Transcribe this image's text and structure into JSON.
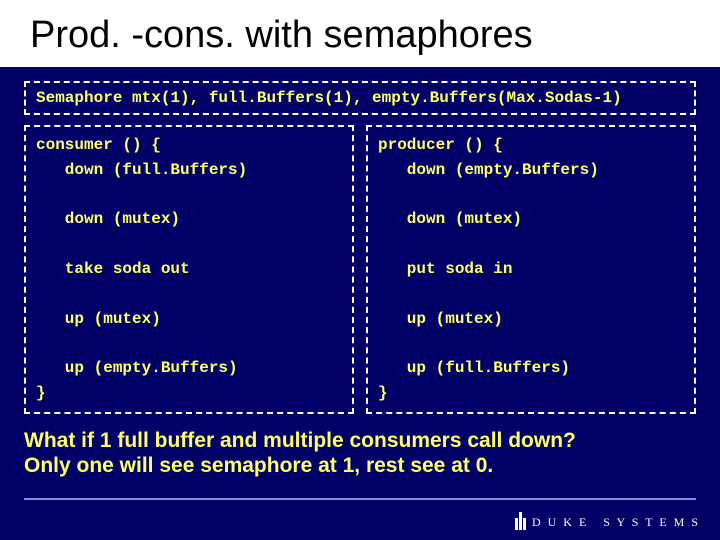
{
  "title": "Prod. -cons. with semaphores",
  "declaration": "Semaphore mtx(1), full.Buffers(1), empty.Buffers(Max.Sodas-1)",
  "consumer_code": "consumer () {\n   down (full.Buffers)\n\n   down (mutex)\n\n   take soda out\n\n   up (mutex)\n\n   up (empty.Buffers)\n}",
  "producer_code": "producer () {\n   down (empty.Buffers)\n\n   down (mutex)\n\n   put soda in\n\n   up (mutex)\n\n   up (full.Buffers)\n}",
  "question_line1": "What if 1 full buffer and multiple consumers call down?",
  "question_line2": "Only one will see semaphore at 1, rest see at 0.",
  "footer": {
    "org_word1": "D U K E",
    "org_word2": "S Y S T E M S"
  },
  "colors": {
    "background": "#000066",
    "title_bg": "#ffffff",
    "title_text": "#000000",
    "code_text": "#ffff66",
    "border": "#ffffff",
    "footer_line": "#8888dd",
    "footer_text": "#ffffff"
  }
}
